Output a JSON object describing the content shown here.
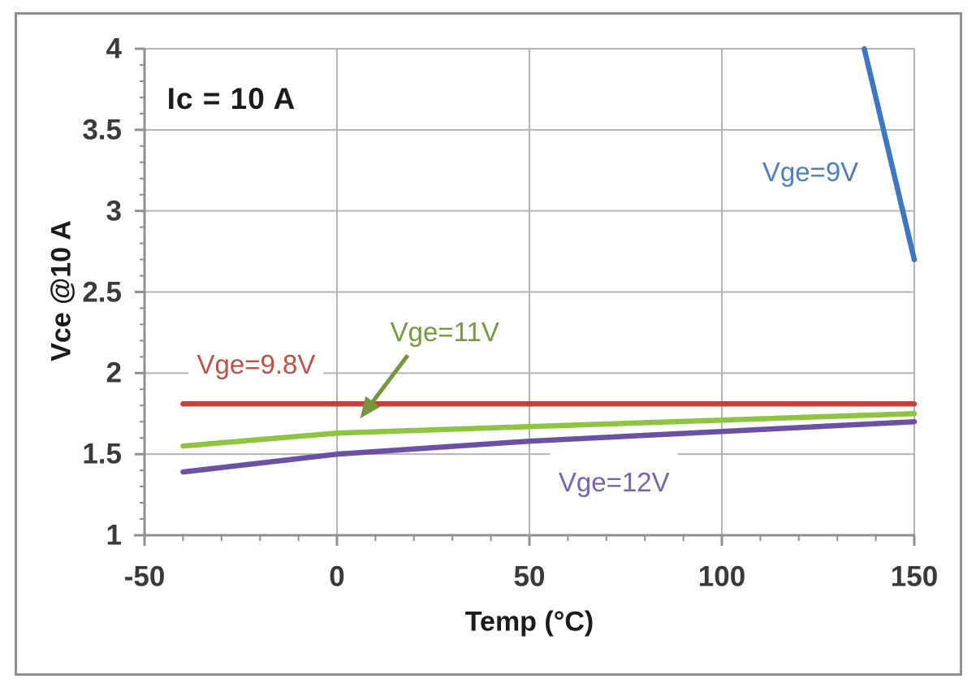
{
  "chart_data": {
    "type": "line",
    "title": "",
    "annotation": "Ic = 10 A",
    "xlabel": "Temp (°C)",
    "ylabel": "Vce @10 A",
    "xlim": [
      -50,
      150
    ],
    "ylim": [
      1,
      4
    ],
    "x_ticks": [
      {
        "v": -50,
        "label": "-50"
      },
      {
        "v": 0,
        "label": "0"
      },
      {
        "v": 50,
        "label": "50"
      },
      {
        "v": 100,
        "label": "100"
      },
      {
        "v": 150,
        "label": "150"
      }
    ],
    "y_ticks": [
      {
        "v": 1,
        "label": "1"
      },
      {
        "v": 1.5,
        "label": "1.5"
      },
      {
        "v": 2,
        "label": "2"
      },
      {
        "v": 2.5,
        "label": "2.5"
      },
      {
        "v": 3,
        "label": "3"
      },
      {
        "v": 3.5,
        "label": "3.5"
      },
      {
        "v": 4,
        "label": "4"
      }
    ],
    "x_minor_step": 10,
    "y_minor_step": 0.1,
    "grid": true,
    "legend_position": "inline-labels",
    "series": [
      {
        "name": "Vge=9V",
        "color": "#3d76c2",
        "label_color": "#4e80c0",
        "points": [
          [
            137,
            4.0
          ],
          [
            150,
            2.7
          ]
        ],
        "label_anchor": [
          123,
          3.24
        ]
      },
      {
        "name": "Vge=9.8V",
        "color": "#c4403a",
        "label_color": "#c05048",
        "points": [
          [
            -40,
            1.81
          ],
          [
            0,
            1.81
          ],
          [
            50,
            1.81
          ],
          [
            100,
            1.81
          ],
          [
            150,
            1.81
          ]
        ],
        "label_anchor": [
          -21,
          2.05
        ]
      },
      {
        "name": "Vge=11V",
        "color": "#8ec440",
        "label_color": "#769a3c",
        "points": [
          [
            -40,
            1.55
          ],
          [
            0,
            1.63
          ],
          [
            50,
            1.67
          ],
          [
            100,
            1.71
          ],
          [
            150,
            1.75
          ]
        ],
        "label_anchor": [
          28,
          2.25
        ]
      },
      {
        "name": "Vge=12V",
        "color": "#6c50a4",
        "label_color": "#7964ac",
        "points": [
          [
            -40,
            1.39
          ],
          [
            0,
            1.5
          ],
          [
            50,
            1.58
          ],
          [
            100,
            1.64
          ],
          [
            150,
            1.7
          ]
        ],
        "label_anchor": [
          72,
          1.33
        ]
      }
    ],
    "arrow": {
      "from": [
        18.4,
        2.11
      ],
      "to": [
        6,
        1.72
      ],
      "color": "#76953c"
    },
    "colors": {
      "gridline": "#b4b4b4",
      "axis": "#8f8f8f",
      "tick_label": "#3a3a3a",
      "border": "#8f8f8f",
      "background": "#ffffff"
    }
  }
}
